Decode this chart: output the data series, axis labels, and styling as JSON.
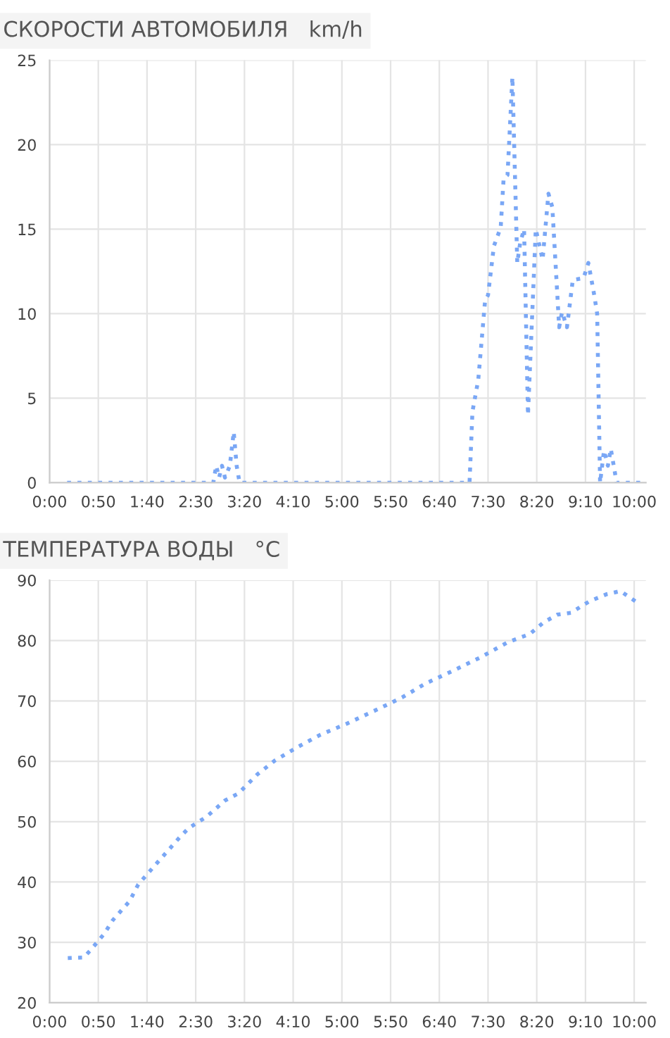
{
  "chart_data": [
    {
      "type": "line",
      "title": "СКОРОСТИ АВТОМОБИЛЯ   km/h",
      "x": [
        18,
        168,
        171,
        174,
        177,
        180,
        185,
        189,
        192,
        195,
        431,
        434,
        440,
        447,
        450,
        456,
        463,
        466,
        470,
        475,
        480,
        483,
        487,
        491,
        499,
        506,
        512,
        516,
        523,
        526,
        531,
        537,
        548,
        553,
        559,
        562,
        565,
        569,
        573,
        576,
        582,
        610
      ],
      "series": [
        {
          "color": "#7aa7f5",
          "values": [
            0,
            0,
            1,
            0.3,
            1,
            0.3,
            1,
            3,
            1,
            0,
            0,
            4.2,
            6.1,
            10.8,
            11.1,
            14,
            15.1,
            18,
            18.2,
            24,
            13,
            14.2,
            15,
            4,
            15,
            13.2,
            17.1,
            16.3,
            9.2,
            10.1,
            9.2,
            12,
            12.1,
            13,
            11.1,
            10,
            0,
            1.9,
            1,
            2,
            0,
            0
          ]
        }
      ],
      "xlim": [
        0,
        612
      ],
      "xticks": [
        {
          "value": 0,
          "label": "0:00"
        },
        {
          "value": 50,
          "label": "0:50"
        },
        {
          "value": 100,
          "label": "1:40"
        },
        {
          "value": 150,
          "label": "2:30"
        },
        {
          "value": 200,
          "label": "3:20"
        },
        {
          "value": 250,
          "label": "4:10"
        },
        {
          "value": 300,
          "label": "5:00"
        },
        {
          "value": 350,
          "label": "5:50"
        },
        {
          "value": 400,
          "label": "6:40"
        },
        {
          "value": 450,
          "label": "7:30"
        },
        {
          "value": 500,
          "label": "8:20"
        },
        {
          "value": 550,
          "label": "9:10"
        },
        {
          "value": 600,
          "label": "10:00"
        }
      ],
      "ylim": [
        0,
        25
      ],
      "yticks": [
        0,
        5,
        10,
        15,
        20,
        25
      ],
      "grid": true,
      "line_style": "dotted"
    },
    {
      "type": "line",
      "title": "ТЕМПЕРАТУРА ВОДЫ   °C",
      "x": [
        18.7,
        35,
        42,
        56,
        65,
        82,
        91,
        110,
        133,
        142.5,
        161,
        180,
        194,
        213,
        231,
        255,
        278,
        306,
        339,
        362,
        386,
        414,
        442,
        470,
        493,
        507,
        521,
        535,
        554,
        572,
        586,
        605
      ],
      "series": [
        {
          "color": "#7aa7f5",
          "values": [
            27.4,
            27.5,
            28.7,
            31.4,
            33.7,
            36.8,
            39.6,
            43.1,
            47.3,
            48.9,
            50.8,
            53.5,
            54.7,
            57.8,
            60.1,
            62.4,
            64.4,
            66.3,
            68.8,
            70.6,
            72.9,
            75,
            77.2,
            79.7,
            81.1,
            83,
            84.3,
            84.6,
            86.5,
            87.7,
            88.2,
            86.1
          ]
        }
      ],
      "xlim": [
        0,
        612
      ],
      "xticks": [
        {
          "value": 0,
          "label": "0:00"
        },
        {
          "value": 50,
          "label": "0:50"
        },
        {
          "value": 100,
          "label": "1:40"
        },
        {
          "value": 150,
          "label": "2:30"
        },
        {
          "value": 200,
          "label": "3:20"
        },
        {
          "value": 250,
          "label": "4:10"
        },
        {
          "value": 300,
          "label": "5:00"
        },
        {
          "value": 350,
          "label": "5:50"
        },
        {
          "value": 400,
          "label": "6:40"
        },
        {
          "value": 450,
          "label": "7:30"
        },
        {
          "value": 500,
          "label": "8:20"
        },
        {
          "value": 550,
          "label": "9:10"
        },
        {
          "value": 600,
          "label": "10:00"
        }
      ],
      "ylim": [
        20,
        90
      ],
      "yticks": [
        20,
        30,
        40,
        50,
        60,
        70,
        80,
        90
      ],
      "grid": true,
      "line_style": "dotted"
    }
  ]
}
